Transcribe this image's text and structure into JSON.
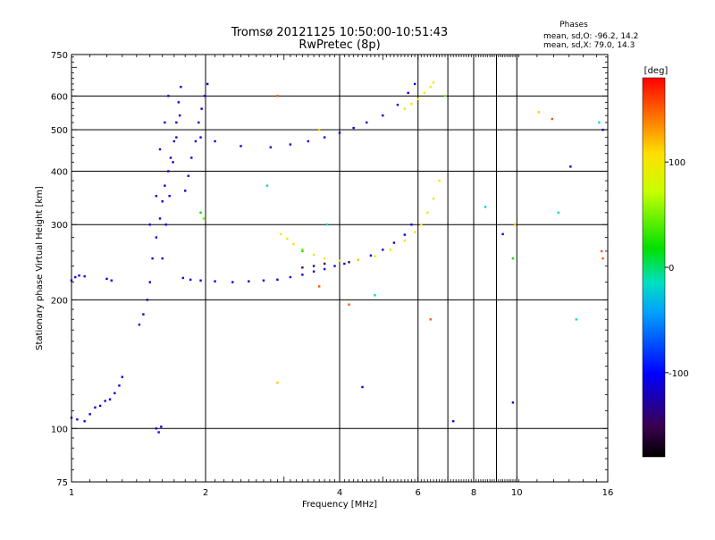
{
  "header": {
    "title": "Tromsø 20121125 10:50:00-10:51:43",
    "subtitle": "RwPretec (8p)",
    "phases_heading": "Phases",
    "phases_line1": "mean, sd,O: -96.2, 14.2",
    "phases_line2": "mean, sd,X:  79.0, 14.3"
  },
  "colorbar": {
    "unit_label": "[deg]",
    "range": [
      -180,
      180
    ],
    "tick_values": [
      100,
      0,
      -100
    ],
    "tick_labels": [
      "100",
      "0",
      "-100"
    ]
  },
  "chart_data": {
    "type": "scatter",
    "xlabel": "Frequency [MHz]",
    "ylabel": "Stationary phase Virtual Height [km]",
    "xscale": "log",
    "yscale": "log",
    "xlim": [
      1,
      16
    ],
    "ylim": [
      75,
      750
    ],
    "grid": true,
    "x_ticks_major": [
      1,
      2,
      4,
      6,
      8,
      10,
      16
    ],
    "x_tick_labels": [
      "1",
      "2",
      "4",
      "6",
      "8",
      "10",
      "16"
    ],
    "y_ticks_major": [
      75,
      100,
      200,
      300,
      400,
      500,
      600,
      750
    ],
    "y_tick_labels": [
      "75",
      "100",
      "200",
      "300",
      "400",
      "500",
      "600",
      "750"
    ],
    "series": [
      {
        "phase": -110,
        "points": [
          [
            1.0,
            222
          ],
          [
            1.02,
            226
          ],
          [
            1.04,
            228
          ],
          [
            1.07,
            227
          ],
          [
            1.2,
            224
          ],
          [
            1.23,
            222
          ],
          [
            1.0,
            106
          ],
          [
            1.03,
            105
          ],
          [
            1.07,
            104
          ],
          [
            1.1,
            108
          ],
          [
            1.13,
            112
          ],
          [
            1.16,
            113
          ],
          [
            1.19,
            116
          ],
          [
            1.22,
            117
          ],
          [
            1.25,
            121
          ],
          [
            1.28,
            126
          ],
          [
            1.3,
            132
          ],
          [
            1.55,
            100
          ],
          [
            1.57,
            98
          ],
          [
            1.59,
            101
          ],
          [
            1.78,
            225
          ],
          [
            1.85,
            223
          ],
          [
            1.95,
            222
          ],
          [
            2.1,
            221
          ],
          [
            2.3,
            220
          ],
          [
            2.5,
            221
          ],
          [
            2.7,
            222
          ],
          [
            2.9,
            223
          ],
          [
            3.1,
            226
          ],
          [
            3.3,
            229
          ],
          [
            3.5,
            233
          ],
          [
            3.7,
            236
          ],
          [
            3.9,
            240
          ],
          [
            4.1,
            243
          ],
          [
            4.4,
            248
          ],
          [
            4.7,
            254
          ],
          [
            5.0,
            262
          ],
          [
            5.3,
            272
          ],
          [
            5.6,
            284
          ],
          [
            5.8,
            300
          ],
          [
            1.95,
            480
          ],
          [
            2.1,
            470
          ],
          [
            2.4,
            458
          ],
          [
            2.8,
            455
          ],
          [
            3.1,
            462
          ],
          [
            3.4,
            470
          ],
          [
            3.7,
            480
          ],
          [
            4.0,
            492
          ],
          [
            4.3,
            505
          ],
          [
            4.6,
            520
          ],
          [
            5.0,
            540
          ],
          [
            5.4,
            572
          ],
          [
            5.7,
            610
          ],
          [
            5.9,
            640
          ],
          [
            1.42,
            175
          ],
          [
            1.45,
            185
          ],
          [
            1.48,
            200
          ],
          [
            1.5,
            220
          ],
          [
            1.52,
            250
          ],
          [
            1.55,
            280
          ],
          [
            1.58,
            310
          ],
          [
            1.6,
            340
          ],
          [
            1.62,
            370
          ],
          [
            1.65,
            400
          ],
          [
            1.67,
            430
          ],
          [
            1.7,
            470
          ],
          [
            1.72,
            520
          ],
          [
            1.74,
            580
          ],
          [
            1.76,
            630
          ],
          [
            1.8,
            360
          ],
          [
            1.83,
            390
          ],
          [
            1.86,
            430
          ],
          [
            1.9,
            470
          ],
          [
            1.93,
            520
          ],
          [
            1.96,
            560
          ],
          [
            1.99,
            600
          ],
          [
            2.02,
            640
          ],
          [
            1.6,
            250
          ],
          [
            1.63,
            300
          ],
          [
            1.66,
            350
          ],
          [
            1.69,
            420
          ],
          [
            1.72,
            480
          ],
          [
            1.75,
            540
          ],
          [
            1.5,
            300
          ],
          [
            1.55,
            350
          ],
          [
            1.58,
            450
          ],
          [
            1.62,
            520
          ],
          [
            1.65,
            600
          ],
          [
            4.5,
            125
          ],
          [
            7.2,
            104
          ],
          [
            9.3,
            285
          ],
          [
            9.8,
            115
          ],
          [
            13.2,
            410
          ],
          [
            15.6,
            500
          ]
        ]
      },
      {
        "phase": -150,
        "points": [
          [
            3.3,
            238
          ],
          [
            3.5,
            240
          ],
          [
            3.7,
            243
          ],
          [
            4.2,
            245
          ]
        ]
      },
      {
        "phase": 95,
        "points": [
          [
            2.95,
            285
          ],
          [
            3.05,
            278
          ],
          [
            3.15,
            270
          ],
          [
            3.3,
            262
          ],
          [
            3.5,
            255
          ],
          [
            3.7,
            250
          ],
          [
            4.0,
            247
          ],
          [
            4.4,
            248
          ],
          [
            4.8,
            253
          ],
          [
            5.2,
            262
          ],
          [
            5.6,
            275
          ],
          [
            5.9,
            288
          ],
          [
            6.1,
            300
          ],
          [
            6.3,
            320
          ],
          [
            6.5,
            345
          ],
          [
            6.7,
            380
          ],
          [
            5.6,
            560
          ],
          [
            5.8,
            575
          ],
          [
            6.0,
            590
          ],
          [
            6.2,
            610
          ],
          [
            6.4,
            630
          ],
          [
            6.5,
            645
          ]
        ]
      },
      {
        "phase": 0,
        "points": [
          [
            1.95,
            320
          ],
          [
            3.3,
            260
          ],
          [
            9.8,
            250
          ]
        ]
      },
      {
        "phase": 40,
        "points": [
          [
            1.98,
            310
          ],
          [
            3.3,
            262
          ],
          [
            6.9,
            600
          ]
        ]
      },
      {
        "phase": -20,
        "points": [
          [
            2.75,
            370
          ],
          [
            3.75,
            300
          ],
          [
            4.8,
            205
          ],
          [
            8.5,
            330
          ],
          [
            12.4,
            320
          ],
          [
            13.6,
            180
          ],
          [
            15.3,
            520
          ]
        ]
      },
      {
        "phase": 150,
        "points": [
          [
            2.9,
            600
          ],
          [
            3.6,
            215
          ],
          [
            4.2,
            195
          ],
          [
            6.4,
            180
          ],
          [
            12.0,
            530
          ],
          [
            15.5,
            260
          ],
          [
            15.6,
            250
          ]
        ]
      },
      {
        "phase": 110,
        "points": [
          [
            2.9,
            128
          ],
          [
            3.6,
            500
          ],
          [
            11.2,
            550
          ],
          [
            9.9,
            300
          ]
        ]
      }
    ]
  }
}
